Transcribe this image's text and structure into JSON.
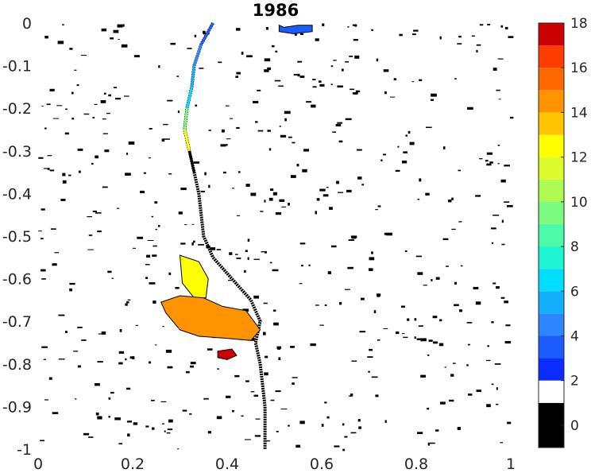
{
  "chart_data": {
    "type": "heatmap",
    "title": "1986",
    "xlabel": "",
    "ylabel": "",
    "xlim": [
      0,
      1
    ],
    "ylim": [
      -1,
      0
    ],
    "x_ticks": [
      0,
      0.2,
      0.4,
      0.6,
      0.8,
      1
    ],
    "x_tick_labels": [
      "0",
      "0.2",
      "0.4",
      "0.6",
      "0.8",
      "1"
    ],
    "y_ticks": [
      0,
      -0.1,
      -0.2,
      -0.3,
      -0.4,
      -0.5,
      -0.6,
      -0.7,
      -0.8,
      -0.9,
      -1
    ],
    "y_tick_labels": [
      "0",
      "-0.1",
      "-0.2",
      "-0.3",
      "-0.4",
      "-0.5",
      "-0.6",
      "-0.7",
      "-0.8",
      "-0.9",
      "-1"
    ],
    "grid": false,
    "colorbar": {
      "range": [
        -1,
        18
      ],
      "ticks": [
        0,
        2,
        4,
        6,
        8,
        10,
        12,
        14,
        16,
        18
      ],
      "tick_labels": [
        "0",
        "2",
        "4",
        "6",
        "8",
        "10",
        "12",
        "14",
        "16",
        "18"
      ],
      "bins": [
        {
          "from": -1,
          "to": 1,
          "color": "#000000"
        },
        {
          "from": 1,
          "to": 2,
          "color": "#ffffff"
        },
        {
          "from": 2,
          "to": 3,
          "color": "#0a2cff"
        },
        {
          "from": 3,
          "to": 4,
          "color": "#1b5cff"
        },
        {
          "from": 4,
          "to": 5,
          "color": "#2e86ff"
        },
        {
          "from": 5,
          "to": 6,
          "color": "#14b0ff"
        },
        {
          "from": 6,
          "to": 7,
          "color": "#00dfff"
        },
        {
          "from": 7,
          "to": 8,
          "color": "#1ef5d2"
        },
        {
          "from": 8,
          "to": 9,
          "color": "#4dfaa8"
        },
        {
          "from": 9,
          "to": 10,
          "color": "#7dfb80"
        },
        {
          "from": 10,
          "to": 11,
          "color": "#aefb52"
        },
        {
          "from": 11,
          "to": 12,
          "color": "#dcfb2a"
        },
        {
          "from": 12,
          "to": 13,
          "color": "#ffff00"
        },
        {
          "from": 13,
          "to": 14,
          "color": "#ffc400"
        },
        {
          "from": 14,
          "to": 15,
          "color": "#ff9400"
        },
        {
          "from": 15,
          "to": 16,
          "color": "#ff6a00"
        },
        {
          "from": 16,
          "to": 17,
          "color": "#ff3c00"
        },
        {
          "from": 17,
          "to": 18,
          "color": "#cc0000"
        }
      ]
    },
    "regions": [
      {
        "value": 3,
        "color": "#1b5cff",
        "x": [
          0.51,
          0.52,
          0.55,
          0.58,
          0.58,
          0.54,
          0.51
        ],
        "y": [
          -0.005,
          -0.01,
          -0.005,
          -0.005,
          -0.02,
          -0.025,
          -0.02
        ]
      },
      {
        "value": 13,
        "color": "#ffff00",
        "x": [
          0.3,
          0.34,
          0.36,
          0.355,
          0.33,
          0.305
        ],
        "y": [
          -0.545,
          -0.56,
          -0.6,
          -0.645,
          -0.645,
          -0.61
        ]
      },
      {
        "value": 15,
        "color": "#ff9400",
        "x": [
          0.26,
          0.3,
          0.35,
          0.39,
          0.44,
          0.47,
          0.45,
          0.4,
          0.34,
          0.3,
          0.27
        ],
        "y": [
          -0.655,
          -0.64,
          -0.645,
          -0.665,
          -0.675,
          -0.72,
          -0.745,
          -0.74,
          -0.735,
          -0.72,
          -0.68
        ]
      },
      {
        "value": 17,
        "color": "#cc0000",
        "x": [
          0.38,
          0.41,
          0.42,
          0.4,
          0.38
        ],
        "y": [
          -0.77,
          -0.765,
          -0.78,
          -0.79,
          -0.785
        ]
      }
    ],
    "channel": {
      "x": [
        0.37,
        0.345,
        0.33,
        0.325,
        0.315,
        0.31,
        0.32,
        0.33,
        0.34,
        0.345,
        0.35,
        0.37,
        0.41,
        0.45,
        0.47,
        0.46,
        0.47,
        0.48,
        0.48
      ],
      "y": [
        0,
        -0.05,
        -0.1,
        -0.15,
        -0.2,
        -0.25,
        -0.3,
        -0.35,
        -0.4,
        -0.45,
        -0.5,
        -0.55,
        -0.6,
        -0.65,
        -0.7,
        -0.75,
        -0.8,
        -0.9,
        -1
      ],
      "colors": [
        "#1b5cff",
        "#2e86ff",
        "#14b0ff",
        "#00dfff",
        "#7dfb80",
        "#ffff00",
        "#000000"
      ]
    },
    "noise_count": 520
  }
}
